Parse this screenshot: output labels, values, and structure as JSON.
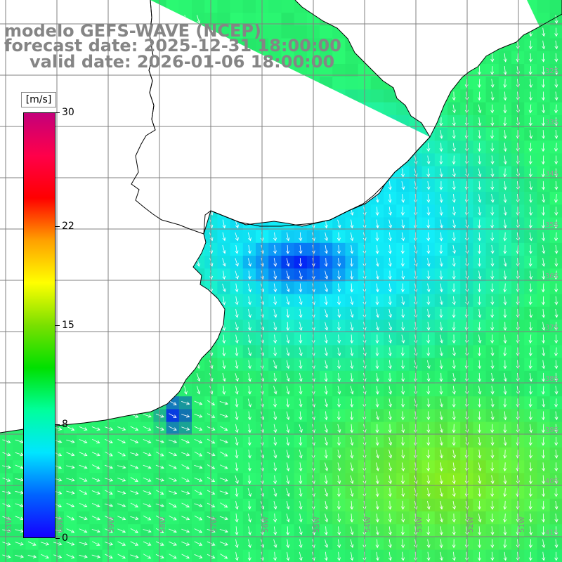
{
  "title": {
    "line1": "modelo GEFS-WAVE (NCEP)",
    "line2": "forecast date: 2025-12-31 18:00:00",
    "line3": "valid date: 2026-01-06 18:00:00"
  },
  "colorbar": {
    "unit": "[m/s]",
    "ticks": [
      {
        "label": "30",
        "value": 30
      },
      {
        "label": "22",
        "value": 22
      },
      {
        "label": "15",
        "value": 15
      },
      {
        "label": "8",
        "value": 8
      },
      {
        "label": "0",
        "value": 0
      }
    ],
    "range": [
      0,
      30
    ],
    "stops": [
      "#1400ff",
      "#0064ff",
      "#00e6ff",
      "#00ff9c",
      "#00e000",
      "#7ae000",
      "#ffff00",
      "#ffa000",
      "#ff0000",
      "#ff004a",
      "#c4007a"
    ]
  },
  "map": {
    "lat_labels": [
      "32S",
      "33S",
      "34S",
      "35S",
      "36S",
      "37S",
      "38S",
      "39S",
      "40S",
      "41S"
    ],
    "lon_labels": [
      "61W",
      "60W",
      "59W",
      "58W",
      "57W",
      "56W",
      "55W",
      "54W",
      "53W",
      "52W",
      "51W"
    ],
    "colors": {
      "sea_base": "#28f298",
      "deep_blue": "#1040e8",
      "cyan": "#12e6f2",
      "land": "#ffffff",
      "grid": "#808080",
      "coast": "#000000",
      "arrows": "#ffffff"
    }
  }
}
